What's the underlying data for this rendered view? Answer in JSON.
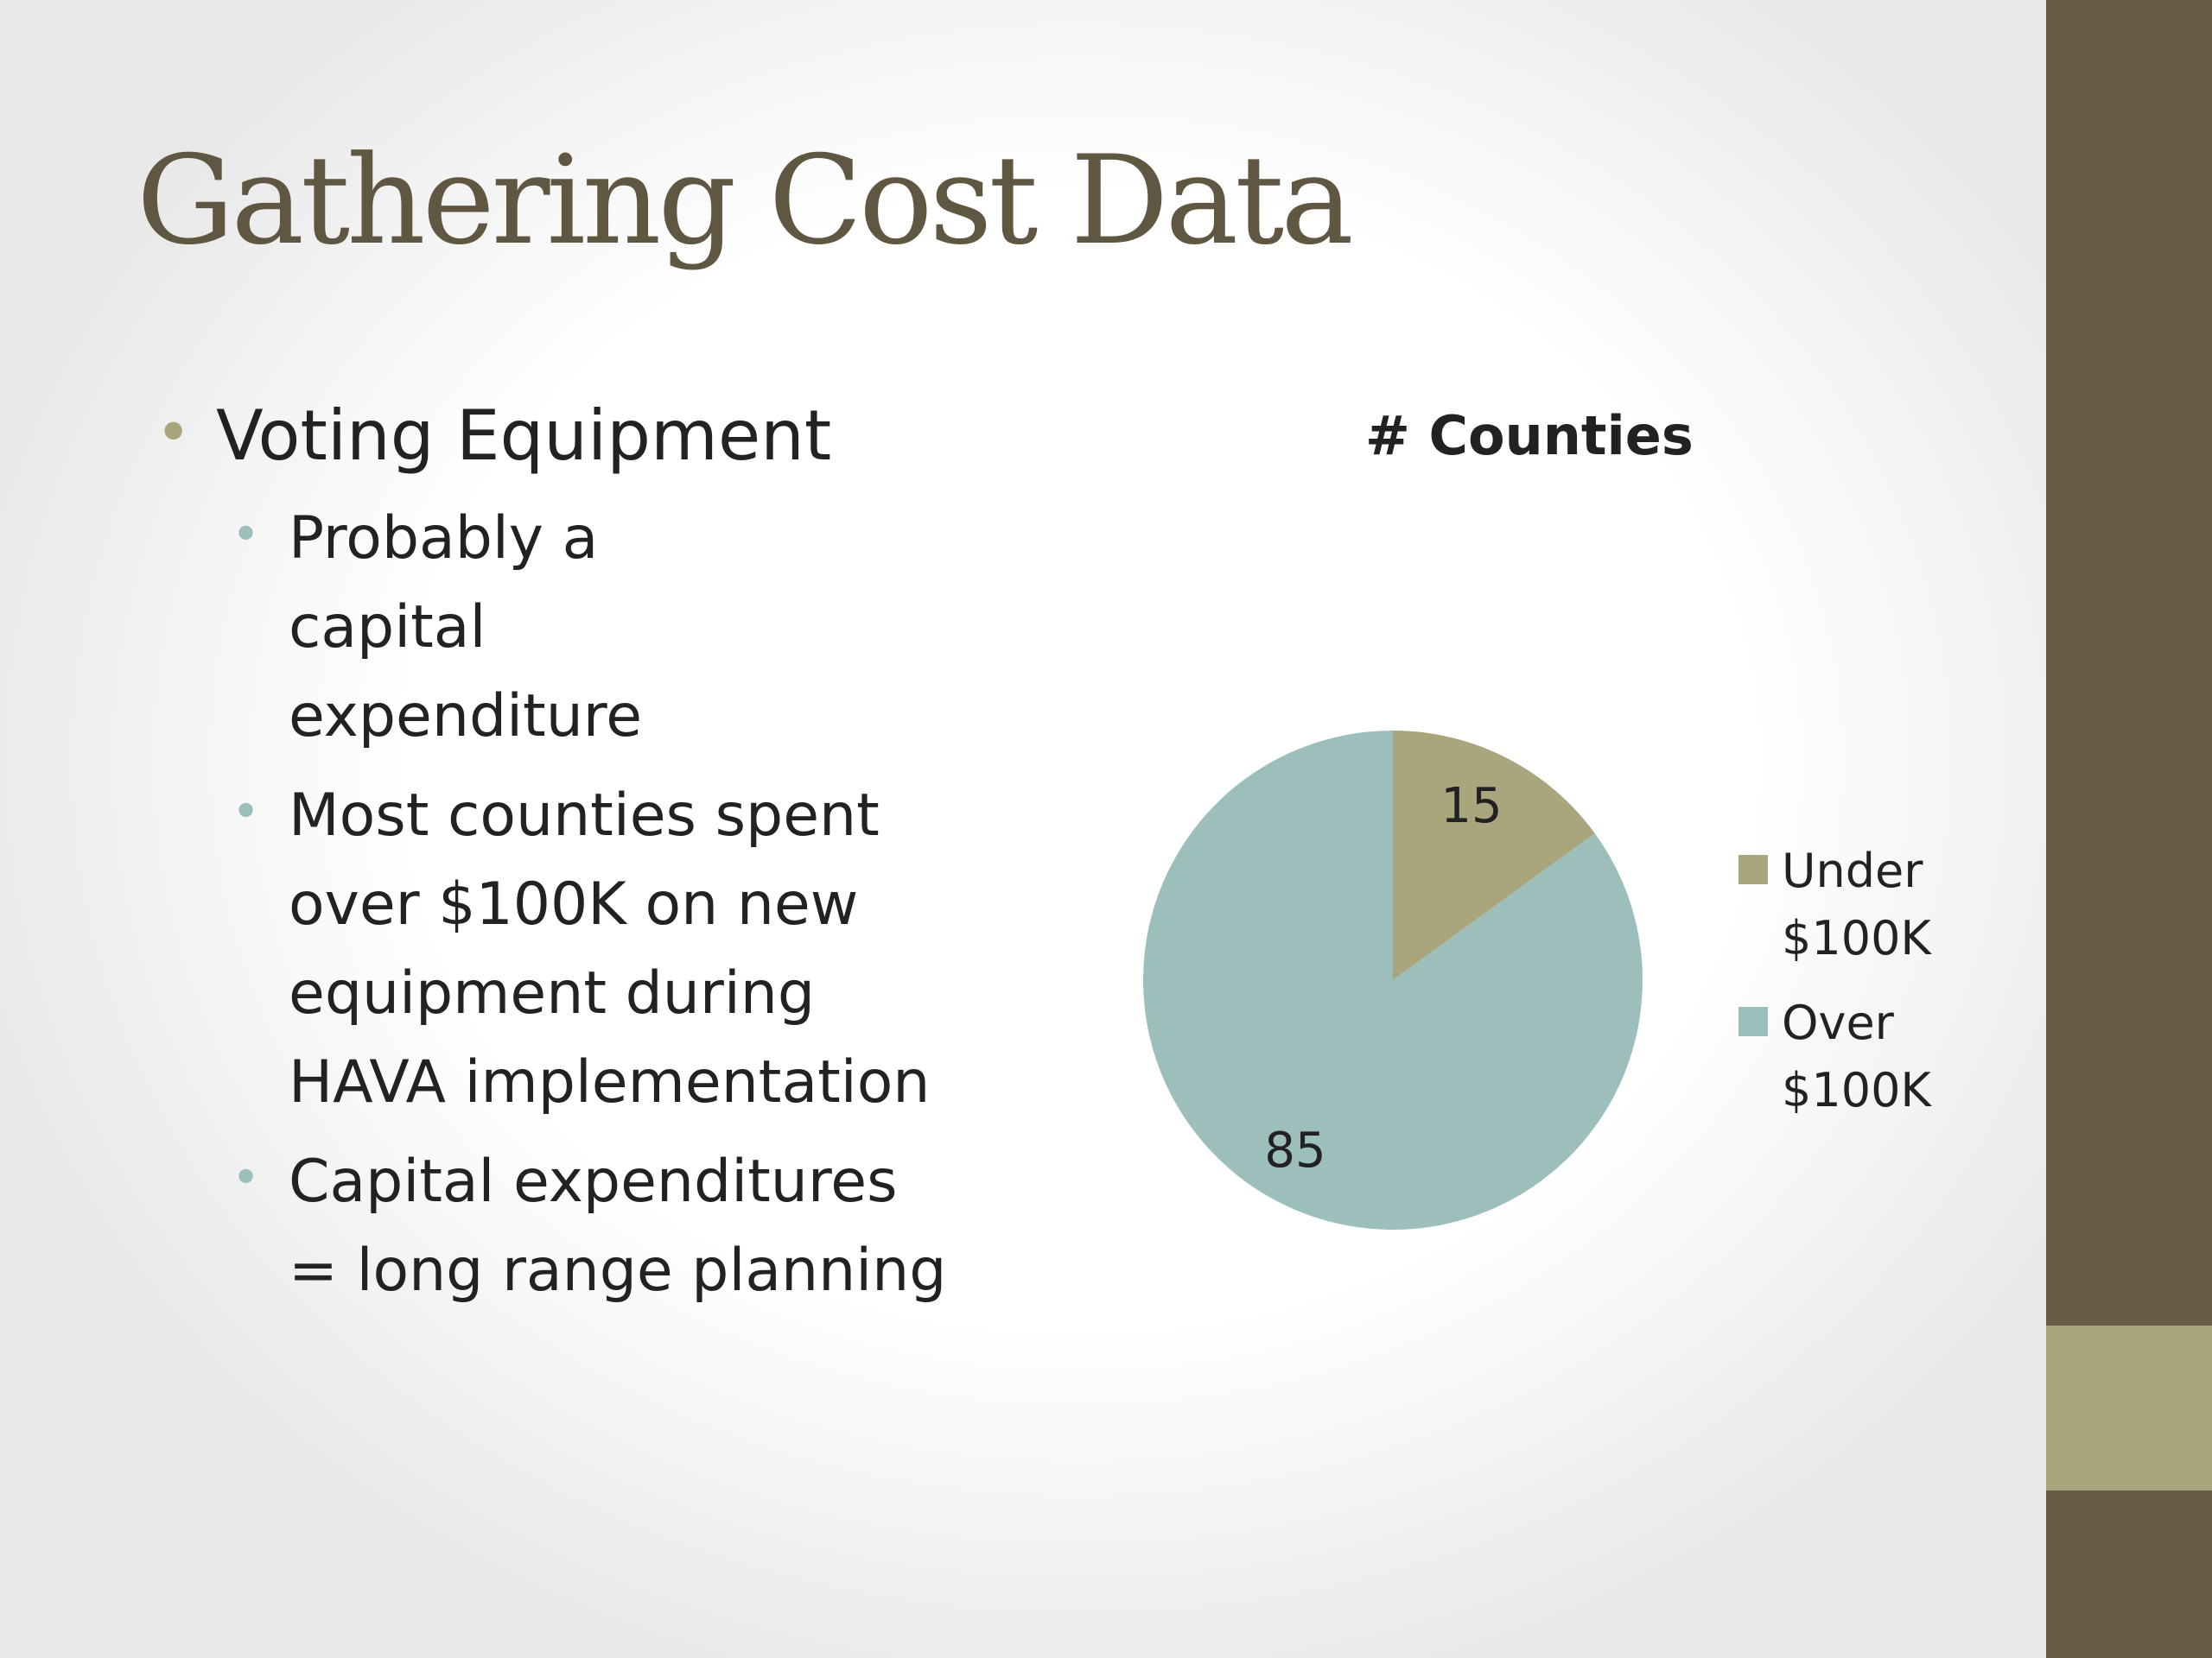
{
  "title": "Gathering Cost Data",
  "bullets": {
    "main": "Voting Equipment",
    "sub": [
      "Probably a capital expenditure",
      "Most counties spent over $100K on new equipment during HAVA implementation",
      "Capital expenditures = long range planning"
    ]
  },
  "colors": {
    "accent_dark": "#675c45",
    "accent_tan": "#a9a57c",
    "accent_teal": "#9dbfbc",
    "title": "#5f5742"
  },
  "chart_data": {
    "type": "pie",
    "title": "# Counties",
    "categories": [
      "Under $100K",
      "Over $100K"
    ],
    "values": [
      15,
      85
    ],
    "colors": [
      "#a9a57c",
      "#9dbfbc"
    ],
    "data_labels": [
      "15",
      "85"
    ],
    "legend": "right"
  }
}
